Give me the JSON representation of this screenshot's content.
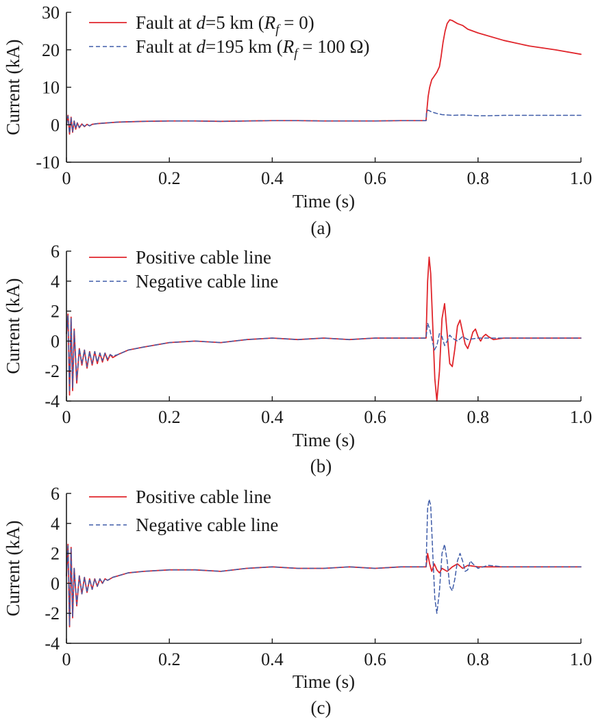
{
  "chart_data": [
    {
      "type": "line",
      "panel_label": "(a)",
      "xlabel": "Time (s)",
      "ylabel": "Current (kA)",
      "xlim": [
        0,
        1.0
      ],
      "ylim": [
        -10,
        30
      ],
      "x_ticks": [
        0,
        0.2,
        0.4,
        0.6,
        0.8,
        1.0
      ],
      "x_tick_labels": [
        "0",
        "0.2",
        "0.4",
        "0.6",
        "0.8",
        "1.0"
      ],
      "y_ticks": [
        -10,
        0,
        10,
        20,
        30
      ],
      "y_tick_labels": [
        "-10",
        "0",
        "10",
        "20",
        "30"
      ],
      "legend_position": "top-left",
      "grid": false,
      "series": [
        {
          "name_parts": [
            "Fault at ",
            "d",
            "=5 km (",
            "R",
            "f",
            " = 0)"
          ],
          "color": "#e0252b",
          "style": "solid",
          "x": [
            0,
            0.003,
            0.006,
            0.009,
            0.012,
            0.015,
            0.018,
            0.021,
            0.025,
            0.03,
            0.035,
            0.04,
            0.045,
            0.05,
            0.06,
            0.07,
            0.08,
            0.1,
            0.15,
            0.2,
            0.25,
            0.3,
            0.35,
            0.4,
            0.45,
            0.5,
            0.55,
            0.6,
            0.65,
            0.699,
            0.7,
            0.703,
            0.706,
            0.71,
            0.715,
            0.72,
            0.725,
            0.728,
            0.732,
            0.736,
            0.74,
            0.745,
            0.75,
            0.76,
            0.77,
            0.78,
            0.8,
            0.85,
            0.9,
            0.95,
            1.0
          ],
          "y": [
            0,
            2.5,
            -2.5,
            2.0,
            -2.0,
            1.0,
            -1.2,
            0.5,
            -0.8,
            0.2,
            -0.5,
            0.1,
            -0.3,
            0.1,
            0.3,
            0.4,
            0.5,
            0.7,
            0.9,
            1.0,
            1.0,
            0.9,
            1.0,
            1.1,
            1.1,
            1.0,
            1.0,
            1.0,
            1.1,
            1.1,
            3.0,
            7.5,
            10.0,
            12.0,
            13.0,
            14.0,
            15.5,
            18.0,
            22.0,
            25.0,
            27.0,
            28.0,
            27.8,
            27.0,
            26.5,
            25.5,
            24.5,
            22.5,
            21.0,
            20.0,
            18.8
          ]
        },
        {
          "name_parts": [
            "Fault at ",
            "d",
            "=195 km (",
            "R",
            "f",
            " = 100 Ω)"
          ],
          "color": "#3f5ca8",
          "style": "dashed",
          "x": [
            0,
            0.003,
            0.006,
            0.009,
            0.012,
            0.015,
            0.018,
            0.021,
            0.025,
            0.03,
            0.035,
            0.04,
            0.045,
            0.05,
            0.06,
            0.07,
            0.08,
            0.1,
            0.15,
            0.2,
            0.25,
            0.3,
            0.35,
            0.4,
            0.45,
            0.5,
            0.55,
            0.6,
            0.65,
            0.699,
            0.7,
            0.703,
            0.71,
            0.72,
            0.73,
            0.75,
            0.77,
            0.8,
            0.82,
            0.85,
            0.9,
            0.95,
            1.0
          ],
          "y": [
            0,
            2.3,
            -2.3,
            1.8,
            -1.8,
            1.0,
            -1.0,
            0.5,
            -0.7,
            0.2,
            -0.4,
            0.1,
            -0.3,
            0.1,
            0.3,
            0.4,
            0.5,
            0.7,
            0.9,
            1.0,
            1.0,
            0.9,
            1.0,
            1.1,
            1.1,
            1.0,
            1.0,
            1.0,
            1.1,
            1.1,
            3.5,
            3.9,
            3.4,
            3.0,
            2.7,
            2.5,
            2.6,
            2.4,
            2.4,
            2.5,
            2.5,
            2.5,
            2.5
          ]
        }
      ]
    },
    {
      "type": "line",
      "panel_label": "(b)",
      "xlabel": "Time (s)",
      "ylabel": "Current (kA)",
      "xlim": [
        0,
        1.0
      ],
      "ylim": [
        -4,
        6
      ],
      "x_ticks": [
        0,
        0.2,
        0.4,
        0.6,
        0.8,
        1.0
      ],
      "x_tick_labels": [
        "0",
        "0.2",
        "0.4",
        "0.6",
        "0.8",
        "1.0"
      ],
      "y_ticks": [
        -4,
        -2,
        0,
        2,
        4,
        6
      ],
      "y_tick_labels": [
        "-4",
        "-2",
        "0",
        "2",
        "4",
        "6"
      ],
      "legend_position": "top-left",
      "grid": false,
      "series": [
        {
          "name_parts": [
            "Positive cable line"
          ],
          "color": "#e0252b",
          "style": "solid",
          "x": [
            0,
            0.003,
            0.006,
            0.009,
            0.012,
            0.015,
            0.02,
            0.025,
            0.03,
            0.035,
            0.04,
            0.045,
            0.05,
            0.055,
            0.06,
            0.065,
            0.07,
            0.075,
            0.08,
            0.085,
            0.09,
            0.1,
            0.12,
            0.15,
            0.2,
            0.25,
            0.3,
            0.35,
            0.4,
            0.45,
            0.5,
            0.55,
            0.6,
            0.65,
            0.699,
            0.702,
            0.705,
            0.708,
            0.712,
            0.716,
            0.72,
            0.725,
            0.73,
            0.735,
            0.74,
            0.745,
            0.75,
            0.755,
            0.76,
            0.765,
            0.77,
            0.775,
            0.78,
            0.785,
            0.79,
            0.795,
            0.8,
            0.805,
            0.81,
            0.815,
            0.82,
            0.83,
            0.85,
            0.9,
            0.95,
            1.0
          ],
          "y": [
            0.5,
            1.8,
            -3.6,
            1.6,
            -3.3,
            0.8,
            -2.8,
            -0.5,
            -1.6,
            -0.6,
            -1.8,
            -0.7,
            -1.6,
            -0.7,
            -1.5,
            -0.8,
            -1.4,
            -0.8,
            -1.3,
            -0.9,
            -1.1,
            -0.9,
            -0.6,
            -0.4,
            -0.1,
            0.0,
            -0.1,
            0.1,
            0.2,
            0.1,
            0.2,
            0.1,
            0.2,
            0.2,
            0.2,
            4.0,
            5.6,
            4.5,
            1.0,
            -2.5,
            -4.0,
            -2.0,
            1.5,
            2.5,
            0.5,
            -1.5,
            -1.7,
            -0.5,
            1.0,
            1.4,
            0.6,
            -0.2,
            -0.5,
            0.0,
            0.6,
            0.8,
            0.3,
            0.0,
            0.3,
            0.45,
            0.3,
            0.1,
            0.2,
            0.2,
            0.2,
            0.2
          ]
        },
        {
          "name_parts": [
            "Negative cable line"
          ],
          "color": "#3f5ca8",
          "style": "dashed",
          "x": [
            0,
            0.003,
            0.006,
            0.009,
            0.012,
            0.015,
            0.02,
            0.025,
            0.03,
            0.035,
            0.04,
            0.045,
            0.05,
            0.055,
            0.06,
            0.065,
            0.07,
            0.075,
            0.08,
            0.085,
            0.09,
            0.1,
            0.12,
            0.15,
            0.2,
            0.25,
            0.3,
            0.35,
            0.4,
            0.45,
            0.5,
            0.55,
            0.6,
            0.65,
            0.699,
            0.702,
            0.706,
            0.71,
            0.715,
            0.72,
            0.725,
            0.73,
            0.735,
            0.74,
            0.745,
            0.75,
            0.76,
            0.77,
            0.78,
            0.8,
            0.85,
            0.9,
            0.95,
            1.0
          ],
          "y": [
            0.5,
            1.7,
            -3.4,
            1.5,
            -3.1,
            0.7,
            -2.6,
            -0.5,
            -1.5,
            -0.6,
            -1.7,
            -0.7,
            -1.5,
            -0.7,
            -1.4,
            -0.8,
            -1.3,
            -0.8,
            -1.2,
            -0.9,
            -1.0,
            -0.9,
            -0.6,
            -0.4,
            -0.1,
            0.0,
            -0.1,
            0.1,
            0.2,
            0.1,
            0.2,
            0.1,
            0.2,
            0.2,
            0.2,
            1.2,
            0.8,
            0.2,
            -0.6,
            -0.3,
            0.5,
            0.3,
            -0.3,
            0.0,
            0.4,
            0.2,
            0.0,
            0.3,
            0.1,
            0.2,
            0.2,
            0.2,
            0.2,
            0.2
          ]
        }
      ]
    },
    {
      "type": "line",
      "panel_label": "(c)",
      "xlabel": "Time (s)",
      "ylabel": "Current (kA)",
      "xlim": [
        0,
        1.0
      ],
      "ylim": [
        -4,
        6
      ],
      "x_ticks": [
        0,
        0.2,
        0.4,
        0.6,
        0.8,
        1.0
      ],
      "x_tick_labels": [
        "0",
        "0.2",
        "0.4",
        "0.6",
        "0.8",
        "1.0"
      ],
      "y_ticks": [
        -4,
        -2,
        0,
        2,
        4,
        6
      ],
      "y_tick_labels": [
        "-4",
        "-2",
        "0",
        "2",
        "4",
        "6"
      ],
      "legend_position": "top-left",
      "grid": false,
      "series": [
        {
          "name_parts": [
            "Positive cable line"
          ],
          "color": "#e0252b",
          "style": "solid",
          "x": [
            0,
            0.003,
            0.006,
            0.009,
            0.012,
            0.015,
            0.02,
            0.025,
            0.03,
            0.035,
            0.04,
            0.045,
            0.05,
            0.055,
            0.06,
            0.065,
            0.07,
            0.075,
            0.08,
            0.09,
            0.1,
            0.12,
            0.15,
            0.2,
            0.25,
            0.3,
            0.35,
            0.4,
            0.45,
            0.5,
            0.55,
            0.6,
            0.65,
            0.699,
            0.702,
            0.706,
            0.71,
            0.715,
            0.72,
            0.725,
            0.73,
            0.74,
            0.75,
            0.76,
            0.77,
            0.78,
            0.8,
            0.85,
            0.9,
            0.95,
            1.0
          ],
          "y": [
            0.5,
            2.6,
            -2.9,
            2.4,
            -2.3,
            1.0,
            -1.5,
            0.5,
            -0.7,
            0.4,
            -0.6,
            0.3,
            -0.4,
            0.3,
            -0.2,
            0.3,
            0.0,
            0.3,
            0.2,
            0.4,
            0.5,
            0.7,
            0.8,
            0.9,
            0.9,
            0.8,
            1.0,
            1.1,
            1.0,
            1.0,
            1.1,
            1.0,
            1.1,
            1.1,
            2.0,
            1.3,
            0.8,
            1.3,
            0.9,
            0.7,
            1.0,
            0.8,
            1.1,
            1.3,
            1.0,
            1.2,
            1.1,
            1.1,
            1.1,
            1.1,
            1.1
          ]
        },
        {
          "name_parts": [
            "Negative cable line"
          ],
          "color": "#3f5ca8",
          "style": "dashed",
          "x": [
            0,
            0.003,
            0.006,
            0.009,
            0.012,
            0.015,
            0.02,
            0.025,
            0.03,
            0.035,
            0.04,
            0.045,
            0.05,
            0.055,
            0.06,
            0.065,
            0.07,
            0.075,
            0.08,
            0.09,
            0.1,
            0.12,
            0.15,
            0.2,
            0.25,
            0.3,
            0.35,
            0.4,
            0.45,
            0.5,
            0.55,
            0.6,
            0.65,
            0.699,
            0.702,
            0.705,
            0.708,
            0.712,
            0.716,
            0.72,
            0.725,
            0.73,
            0.735,
            0.74,
            0.745,
            0.75,
            0.755,
            0.76,
            0.765,
            0.77,
            0.775,
            0.78,
            0.785,
            0.79,
            0.8,
            0.82,
            0.85,
            0.9,
            0.95,
            1.0
          ],
          "y": [
            0.5,
            2.5,
            -2.8,
            2.3,
            -2.2,
            1.0,
            -1.4,
            0.5,
            -0.7,
            0.4,
            -0.6,
            0.3,
            -0.4,
            0.3,
            -0.2,
            0.3,
            0.0,
            0.3,
            0.2,
            0.4,
            0.5,
            0.7,
            0.8,
            0.9,
            0.9,
            0.8,
            1.0,
            1.1,
            1.0,
            1.0,
            1.1,
            1.0,
            1.1,
            1.1,
            5.0,
            5.6,
            5.2,
            2.0,
            -1.0,
            -2.0,
            -0.5,
            2.0,
            2.6,
            1.5,
            -0.2,
            -0.5,
            0.3,
            1.5,
            2.0,
            1.5,
            0.8,
            0.9,
            1.5,
            1.3,
            1.0,
            1.2,
            1.1,
            1.1,
            1.1,
            1.1
          ]
        }
      ]
    }
  ]
}
